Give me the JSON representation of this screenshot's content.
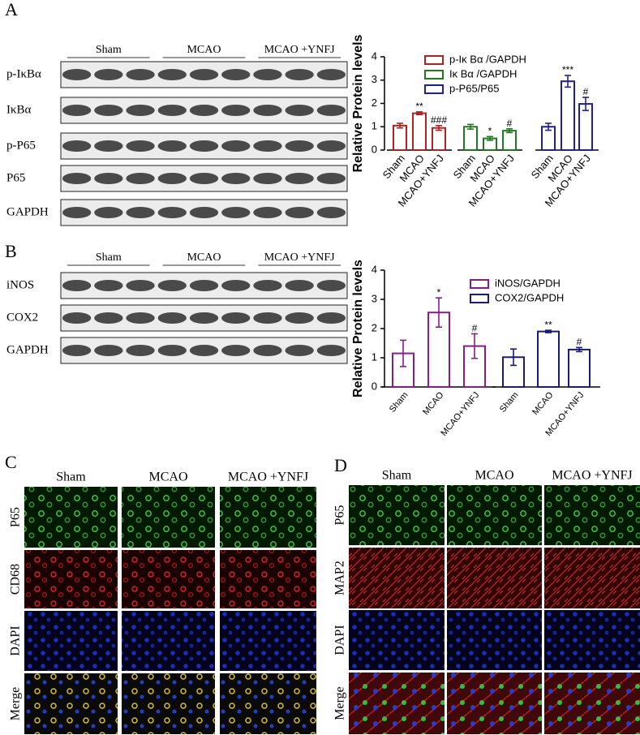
{
  "panel_labels": [
    "A",
    "B",
    "C",
    "D"
  ],
  "blot_a": {
    "groups": [
      "Sham",
      "MCAO",
      "MCAO +YNFJ"
    ],
    "rows": [
      "p-IκBα",
      "IκBα",
      "p-P65",
      "P65",
      "GAPDH"
    ]
  },
  "blot_b": {
    "groups": [
      "Sham",
      "MCAO",
      "MCAO +YNFJ"
    ],
    "rows": [
      "iNOS",
      "COX2",
      "GAPDH"
    ]
  },
  "micro_c": {
    "columns": [
      "Sham",
      "MCAO",
      "MCAO +YNFJ"
    ],
    "rows": [
      "P65",
      "CD68",
      "DAPI",
      "Merge"
    ]
  },
  "micro_d": {
    "columns": [
      "Sham",
      "MCAO",
      "MCAO +YNFJ"
    ],
    "rows": [
      "P65",
      "MAP2",
      "DAPI",
      "Merge"
    ]
  },
  "chart_data": [
    {
      "type": "bar",
      "ylabel": "Relative  Protein levels",
      "categories": [
        "Sham",
        "MCAO",
        "MCAO+YNFJ"
      ],
      "ylim": [
        0,
        4
      ],
      "yticks": [
        0,
        1,
        2,
        3,
        4
      ],
      "series": [
        {
          "name": "p-Iκ Bα /GAPDH",
          "color": "#b22222",
          "values": [
            1.05,
            1.58,
            0.95
          ],
          "errors": [
            0.1,
            0.06,
            0.1
          ],
          "annotations": [
            null,
            "**",
            "###"
          ]
        },
        {
          "name": "Iκ Bα /GAPDH",
          "color": "#1e7b1e",
          "values": [
            1.0,
            0.5,
            0.83
          ],
          "errors": [
            0.1,
            0.08,
            0.08
          ],
          "annotations": [
            null,
            "*",
            "#"
          ]
        },
        {
          "name": "p-P65/P65",
          "color": "#1f1f9e",
          "values": [
            1.0,
            2.95,
            1.98
          ],
          "errors": [
            0.15,
            0.25,
            0.28
          ],
          "annotations": [
            null,
            "***",
            "#"
          ]
        }
      ]
    },
    {
      "type": "bar",
      "ylabel": "Relative  Protein levels",
      "categories": [
        "Sham",
        "MCAO",
        "MCAO+YNFJ"
      ],
      "ylim": [
        0,
        4
      ],
      "yticks": [
        0,
        1,
        2,
        3,
        4
      ],
      "series": [
        {
          "name": "iNOS/GAPDH",
          "color": "#8b1a8b",
          "values": [
            1.15,
            2.55,
            1.4
          ],
          "errors": [
            0.45,
            0.5,
            0.42
          ],
          "annotations": [
            null,
            "*",
            "#"
          ]
        },
        {
          "name": "COX2/GAPDH",
          "color": "#1a1a7a",
          "values": [
            1.02,
            1.9,
            1.28
          ],
          "errors": [
            0.28,
            0.04,
            0.07
          ],
          "annotations": [
            null,
            "**",
            "#"
          ]
        }
      ]
    }
  ]
}
